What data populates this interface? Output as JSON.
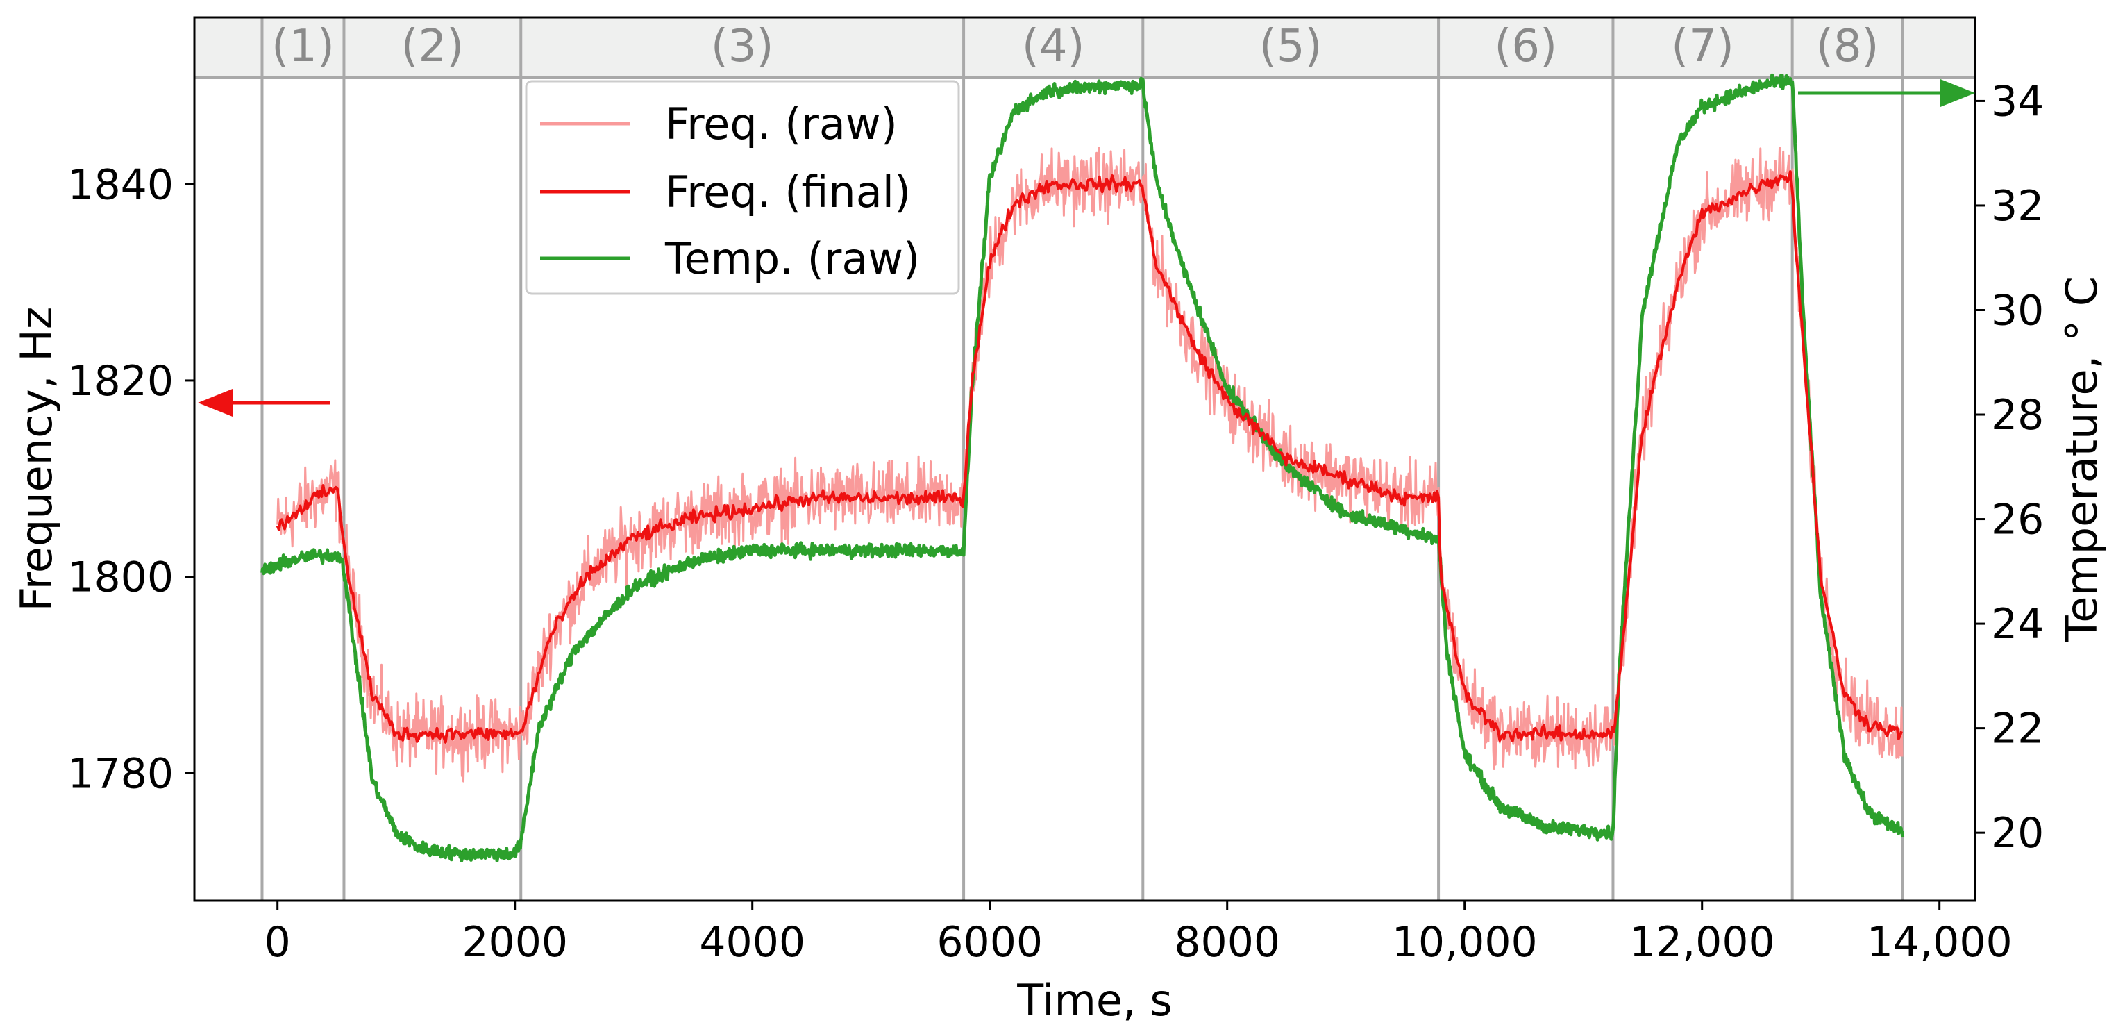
{
  "chart_data": {
    "type": "line",
    "x": {
      "label": "Time, s",
      "range": [
        -700,
        14300
      ],
      "ticks": [
        0,
        2000,
        4000,
        6000,
        8000,
        10000,
        12000,
        14000
      ],
      "tick_labels": [
        "0",
        "2000",
        "4000",
        "6000",
        "8000",
        "10,000",
        "12,000",
        "14,000"
      ]
    },
    "y_left": {
      "label": "Frequency, Hz",
      "range": [
        1767,
        1857
      ],
      "ticks": [
        1780,
        1800,
        1820,
        1840
      ],
      "tick_labels": [
        "1780",
        "1800",
        "1820",
        "1840"
      ]
    },
    "y_right": {
      "label": "Temperature, ° C",
      "range": [
        18.7,
        35.6
      ],
      "ticks": [
        20,
        22,
        24,
        26,
        28,
        30,
        32,
        34
      ],
      "tick_labels": [
        "20",
        "22",
        "24",
        "26",
        "28",
        "30",
        "32",
        "34"
      ]
    },
    "phases": {
      "boundaries": [
        -130,
        560,
        2050,
        5780,
        7290,
        9780,
        11250,
        12760,
        13690
      ],
      "labels": [
        "(1)",
        "(2)",
        "(3)",
        "(4)",
        "(5)",
        "(6)",
        "(7)",
        "(8)"
      ]
    },
    "series": [
      {
        "name": "Freq. (raw)",
        "axis": "left",
        "color": "#f99a9a",
        "noise": 3.4,
        "x": [
          0,
          100,
          300,
          500,
          600,
          800,
          1000,
          1500,
          2000,
          2050,
          2300,
          2600,
          3000,
          3500,
          4000,
          4500,
          5000,
          5500,
          5780,
          5850,
          6000,
          6200,
          6500,
          7000,
          7280,
          7400,
          7700,
          8000,
          8500,
          9000,
          9500,
          9780,
          9800,
          10000,
          10300,
          10700,
          11200,
          11260,
          11500,
          11800,
          12000,
          12500,
          12750,
          12800,
          13000,
          13200,
          13400,
          13690
        ],
        "values": [
          1805,
          1806,
          1808,
          1809,
          1800,
          1788,
          1784,
          1784,
          1784,
          1784,
          1794,
          1800,
          1804,
          1806,
          1807,
          1808,
          1808,
          1808,
          1808,
          1820,
          1832,
          1838,
          1840,
          1840,
          1840,
          1832,
          1824,
          1818,
          1812,
          1810,
          1808,
          1808,
          1800,
          1788,
          1784,
          1784,
          1784,
          1784,
          1815,
          1830,
          1837,
          1840,
          1841,
          1832,
          1800,
          1788,
          1785,
          1784
        ]
      },
      {
        "name": "Freq. (final)",
        "axis": "left",
        "color": "#ee1111",
        "noise": 0.7,
        "x": [
          0,
          100,
          300,
          500,
          600,
          800,
          1000,
          1500,
          2000,
          2050,
          2300,
          2600,
          3000,
          3500,
          4000,
          4500,
          5000,
          5500,
          5780,
          5850,
          6000,
          6200,
          6500,
          7000,
          7280,
          7400,
          7700,
          8000,
          8500,
          9000,
          9500,
          9780,
          9800,
          10000,
          10300,
          10700,
          11200,
          11260,
          11500,
          11800,
          12000,
          12500,
          12750,
          12800,
          13000,
          13200,
          13400,
          13690
        ],
        "values": [
          1805,
          1806,
          1808,
          1809,
          1800,
          1788,
          1784,
          1784,
          1784,
          1784,
          1794,
          1800,
          1804,
          1806,
          1807,
          1808,
          1808,
          1808,
          1808,
          1820,
          1832,
          1838,
          1840,
          1840,
          1840,
          1832,
          1824,
          1818,
          1812,
          1810,
          1808,
          1808,
          1800,
          1788,
          1784,
          1784,
          1784,
          1784,
          1815,
          1830,
          1837,
          1840,
          1841,
          1832,
          1800,
          1788,
          1785,
          1784
        ]
      },
      {
        "name": "Temp. (raw)",
        "axis": "right",
        "color": "#2ca02c",
        "noise": 0.12,
        "x": [
          -130,
          100,
          300,
          540,
          620,
          800,
          1000,
          1200,
          1500,
          2000,
          2050,
          2200,
          2500,
          3000,
          3500,
          4000,
          5000,
          5780,
          5850,
          6000,
          6200,
          6500,
          7000,
          7290,
          7400,
          7600,
          8000,
          8500,
          9000,
          9500,
          9780,
          9850,
          10000,
          10300,
          10700,
          11250,
          11300,
          11500,
          11800,
          12000,
          12500,
          12760,
          12850,
          13000,
          13200,
          13400,
          13690
        ],
        "values": [
          25.0,
          25.2,
          25.3,
          25.3,
          24.0,
          21.0,
          20.0,
          19.7,
          19.6,
          19.6,
          19.8,
          22.0,
          23.5,
          24.7,
          25.2,
          25.4,
          25.4,
          25.4,
          28.5,
          32.5,
          33.8,
          34.2,
          34.3,
          34.3,
          32.5,
          31.0,
          28.5,
          27.0,
          26.1,
          25.8,
          25.6,
          23.5,
          21.5,
          20.5,
          20.1,
          20.0,
          23.0,
          30.0,
          33.2,
          33.9,
          34.3,
          34.4,
          30.0,
          24.5,
          21.5,
          20.4,
          20.0
        ]
      }
    ],
    "legend": [
      "Freq. (raw)",
      "Freq. (final)",
      "Temp. (raw)"
    ],
    "legend_position": "upper-center",
    "annotations": [
      {
        "type": "arrow",
        "direction": "left",
        "color": "#ee1111",
        "meaning": "frequency uses left axis"
      },
      {
        "type": "arrow",
        "direction": "right",
        "color": "#2ca02c",
        "meaning": "temperature uses right axis"
      }
    ]
  }
}
